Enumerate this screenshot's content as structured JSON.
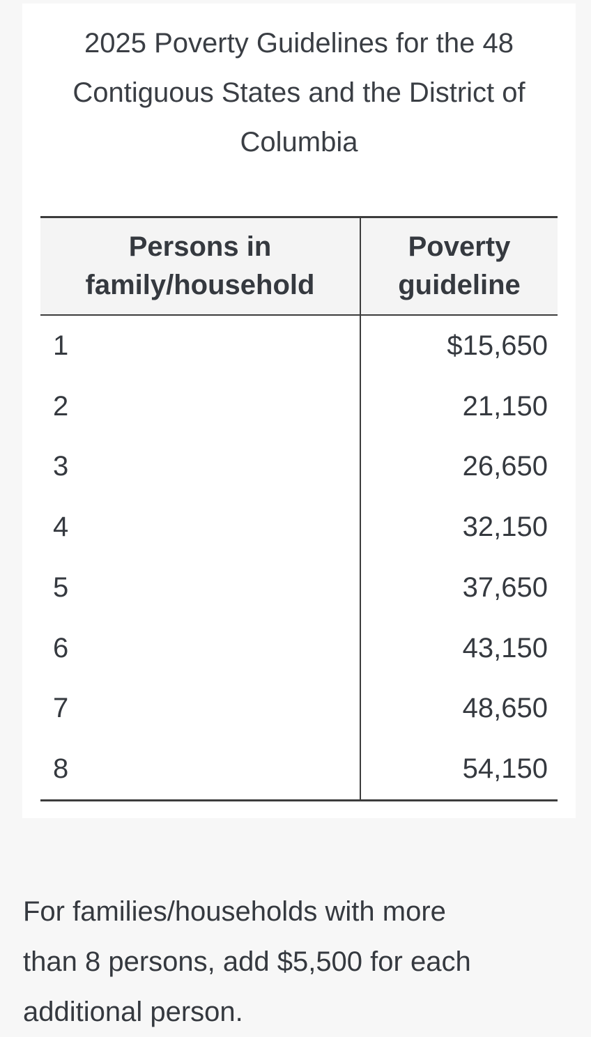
{
  "title": {
    "full": "2025 Poverty Guidelines for the 48 Contiguous States and the District of Columbia",
    "lines": [
      "2025 Poverty Guidelines for the 48",
      "Contiguous States and the District of",
      "Columbia"
    ]
  },
  "table": {
    "columns": [
      "Persons in family/household",
      "Poverty guideline"
    ],
    "rows": [
      {
        "persons": "1",
        "guideline": "$15,650"
      },
      {
        "persons": "2",
        "guideline": "21,150"
      },
      {
        "persons": "3",
        "guideline": "26,650"
      },
      {
        "persons": "4",
        "guideline": "32,150"
      },
      {
        "persons": "5",
        "guideline": "37,650"
      },
      {
        "persons": "6",
        "guideline": "43,150"
      },
      {
        "persons": "7",
        "guideline": "48,650"
      },
      {
        "persons": "8",
        "guideline": "54,150"
      }
    ]
  },
  "footnote": {
    "full": "For families/households with more than 8 persons, add $5,500 for each additional person.",
    "lines": [
      "For families/households with more",
      "than 8 persons, add $5,500 for each",
      "additional person."
    ]
  },
  "colors": {
    "page_background": "#f7f7f7",
    "card_background": "#ffffff",
    "header_background": "#f4f4f4",
    "border": "#3c3c3c",
    "text": "#35393f"
  }
}
